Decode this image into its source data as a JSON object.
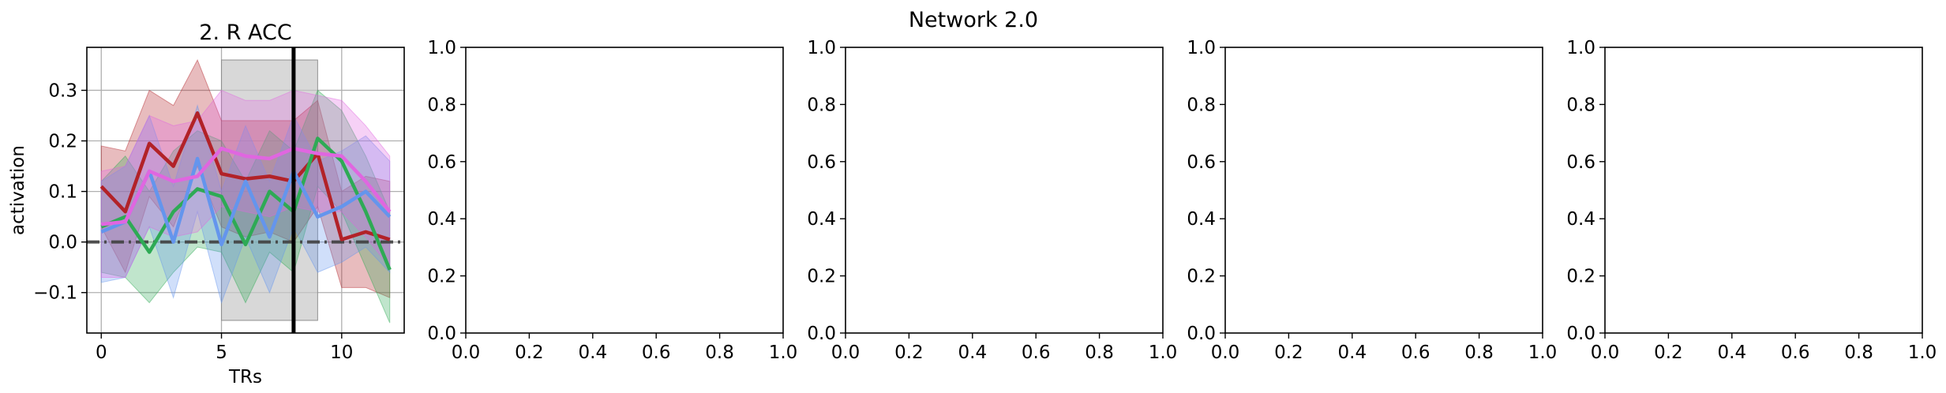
{
  "figure": {
    "suptitle": "Network 2.0"
  },
  "colors": {
    "red": "#b22228",
    "green": "#2eaa55",
    "blue": "#6495ed",
    "magenta": "#e066e0",
    "axis": "#000000",
    "grid": "#b0b0b0",
    "shade": "#c8c8c8",
    "baseline": "#404040"
  },
  "chart_data": [
    {
      "type": "line",
      "title": "2. R ACC",
      "xlabel": "TRs",
      "ylabel": "activation",
      "xlim": [
        -0.6,
        12.6
      ],
      "ylim": [
        -0.18,
        0.385
      ],
      "xticks": [
        0,
        5,
        10
      ],
      "yticks": [
        -0.1,
        0.0,
        0.1,
        0.2,
        0.3
      ],
      "grid": true,
      "shaded_region": {
        "x": [
          5,
          9
        ],
        "y": [
          -0.155,
          0.36
        ]
      },
      "vertical_line_x": 8,
      "baseline_y": 0.0,
      "x": [
        0,
        1,
        2,
        3,
        4,
        5,
        6,
        7,
        8,
        9,
        10,
        11,
        12
      ],
      "series": [
        {
          "color_key": "red",
          "values": [
            0.11,
            0.06,
            0.195,
            0.15,
            0.255,
            0.135,
            0.125,
            0.13,
            0.12,
            0.175,
            0.005,
            0.02,
            0.005
          ],
          "upper": [
            0.19,
            0.18,
            0.3,
            0.27,
            0.36,
            0.24,
            0.24,
            0.24,
            0.24,
            0.28,
            0.1,
            0.13,
            0.12
          ],
          "lower": [
            0.03,
            -0.06,
            0.09,
            0.03,
            0.15,
            0.03,
            0.01,
            0.02,
            0.0,
            0.07,
            -0.09,
            -0.09,
            -0.11
          ]
        },
        {
          "color_key": "green",
          "values": [
            0.03,
            0.05,
            -0.02,
            0.06,
            0.105,
            0.09,
            -0.005,
            0.1,
            0.06,
            0.205,
            0.16,
            0.06,
            -0.055
          ],
          "upper": [
            0.12,
            0.17,
            0.1,
            0.18,
            0.22,
            0.2,
            0.12,
            0.22,
            0.18,
            0.3,
            0.26,
            0.17,
            0.06
          ],
          "lower": [
            -0.06,
            -0.07,
            -0.12,
            -0.06,
            -0.01,
            -0.02,
            -0.12,
            -0.02,
            -0.06,
            0.11,
            0.06,
            -0.05,
            -0.16
          ]
        },
        {
          "color_key": "blue",
          "values": [
            0.02,
            0.04,
            0.14,
            0.0,
            0.165,
            -0.005,
            0.12,
            0.01,
            0.14,
            0.05,
            0.07,
            0.1,
            0.05
          ],
          "upper": [
            0.12,
            0.15,
            0.25,
            0.11,
            0.27,
            0.1,
            0.23,
            0.12,
            0.25,
            0.16,
            0.18,
            0.21,
            0.16
          ],
          "lower": [
            -0.08,
            -0.07,
            0.03,
            -0.11,
            0.06,
            -0.12,
            0.01,
            -0.1,
            0.03,
            -0.06,
            -0.04,
            -0.01,
            -0.06
          ]
        },
        {
          "color_key": "magenta",
          "values": [
            0.035,
            0.04,
            0.14,
            0.12,
            0.13,
            0.185,
            0.17,
            0.165,
            0.185,
            0.175,
            0.17,
            0.12,
            0.06
          ],
          "upper": [
            0.14,
            0.15,
            0.25,
            0.23,
            0.24,
            0.3,
            0.28,
            0.28,
            0.3,
            0.29,
            0.28,
            0.23,
            0.17
          ],
          "lower": [
            -0.07,
            -0.07,
            0.03,
            0.01,
            0.02,
            0.07,
            0.06,
            0.05,
            0.07,
            0.06,
            0.06,
            0.01,
            -0.05
          ]
        }
      ]
    },
    {
      "type": "line",
      "xlim": [
        0,
        1
      ],
      "ylim": [
        0,
        1
      ],
      "xticks": [
        0.0,
        0.2,
        0.4,
        0.6,
        0.8,
        1.0
      ],
      "yticks": [
        0.0,
        0.2,
        0.4,
        0.6,
        0.8,
        1.0
      ]
    },
    {
      "type": "line",
      "xlim": [
        0,
        1
      ],
      "ylim": [
        0,
        1
      ],
      "xticks": [
        0.0,
        0.2,
        0.4,
        0.6,
        0.8,
        1.0
      ],
      "yticks": [
        0.0,
        0.2,
        0.4,
        0.6,
        0.8,
        1.0
      ]
    },
    {
      "type": "line",
      "xlim": [
        0,
        1
      ],
      "ylim": [
        0,
        1
      ],
      "xticks": [
        0.0,
        0.2,
        0.4,
        0.6,
        0.8,
        1.0
      ],
      "yticks": [
        0.0,
        0.2,
        0.4,
        0.6,
        0.8,
        1.0
      ]
    },
    {
      "type": "line",
      "xlim": [
        0,
        1
      ],
      "ylim": [
        0,
        1
      ],
      "xticks": [
        0.0,
        0.2,
        0.4,
        0.6,
        0.8,
        1.0
      ],
      "yticks": [
        0.0,
        0.2,
        0.4,
        0.6,
        0.8,
        1.0
      ]
    }
  ]
}
